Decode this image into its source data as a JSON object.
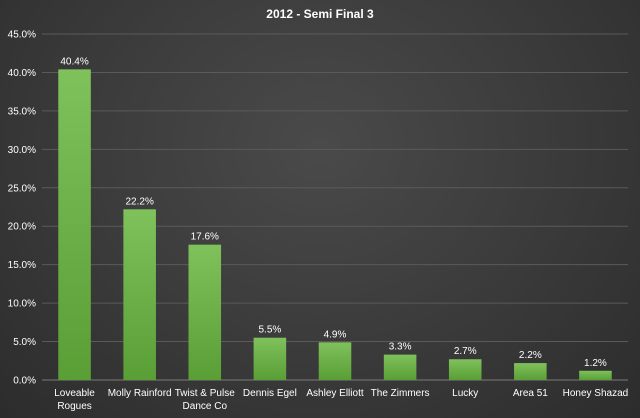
{
  "chart_data": {
    "type": "bar",
    "title": "2012 - Semi Final 3",
    "xlabel": "",
    "ylabel": "",
    "categories": [
      [
        "Loveable",
        "Rogues"
      ],
      [
        "Molly Rainford"
      ],
      [
        "Twist & Pulse",
        "Dance Co"
      ],
      [
        "Dennis Egel"
      ],
      [
        "Ashley Elliott"
      ],
      [
        "The Zimmers"
      ],
      [
        "Lucky"
      ],
      [
        "Area 51"
      ],
      [
        "Honey Shazad"
      ]
    ],
    "values": [
      40.4,
      22.2,
      17.6,
      5.5,
      4.9,
      3.3,
      2.7,
      2.2,
      1.2
    ],
    "data_labels": [
      "40.4%",
      "22.2%",
      "17.6%",
      "5.5%",
      "4.9%",
      "3.3%",
      "2.7%",
      "2.2%",
      "1.2%"
    ],
    "ylim": [
      0,
      45
    ],
    "y_ticks": [
      0,
      5,
      10,
      15,
      20,
      25,
      30,
      35,
      40,
      45
    ],
    "y_tick_labels": [
      "0.0%",
      "5.0%",
      "10.0%",
      "15.0%",
      "20.0%",
      "25.0%",
      "30.0%",
      "35.0%",
      "40.0%",
      "45.0%"
    ],
    "grid": true,
    "legend": "none",
    "colors": {
      "bar_top": "#7fc15b",
      "bar_bottom": "#5a9e36",
      "text": "#ffffff",
      "grid": "#5a5a5a"
    }
  }
}
